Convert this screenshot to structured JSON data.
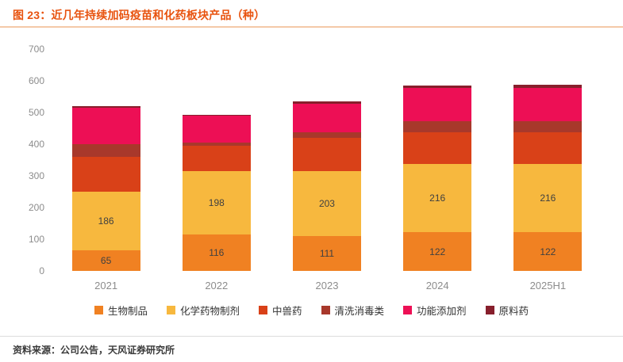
{
  "title": "图 23：近几年持续加码疫苗和化药板块产品（种）",
  "source": "资料来源：公司公告，天风证券研究所",
  "colors": {
    "title": "#E8530F",
    "title_underline": "#F4C9A8",
    "axis_text": "#8C8C8C",
    "bar_label_text": "#404040",
    "footer_divider": "#DCDCDC"
  },
  "chart_data": {
    "type": "bar",
    "stacked": true,
    "title": "图 23：近几年持续加码疫苗和化药板块产品（种）",
    "xlabel": "",
    "ylabel": "",
    "ylim": [
      0,
      700
    ],
    "yticks": [
      0,
      100,
      200,
      300,
      400,
      500,
      600,
      700
    ],
    "grid": false,
    "legend_position": "bottom",
    "categories": [
      "2021",
      "2022",
      "2023",
      "2024",
      "2025H1"
    ],
    "series": [
      {
        "name": "生物制品",
        "color": "#F08122",
        "show_labels": true,
        "values": [
          65,
          116,
          111,
          122,
          122
        ]
      },
      {
        "name": "化学药物制剂",
        "color": "#F7B83E",
        "show_labels": true,
        "values": [
          186,
          198,
          203,
          216,
          216
        ]
      },
      {
        "name": "中兽药",
        "color": "#D94118",
        "show_labels": false,
        "values": [
          110,
          80,
          105,
          100,
          100
        ]
      },
      {
        "name": "清洗消毒类",
        "color": "#A8382B",
        "show_labels": false,
        "values": [
          38,
          10,
          18,
          35,
          35
        ]
      },
      {
        "name": "功能添加剂",
        "color": "#ED0F55",
        "show_labels": false,
        "values": [
          115,
          85,
          90,
          105,
          105
        ]
      },
      {
        "name": "原料药",
        "color": "#871F2C",
        "show_labels": false,
        "values": [
          6,
          4,
          8,
          7,
          9
        ]
      }
    ],
    "totals": [
      520,
      493,
      535,
      585,
      587
    ]
  }
}
